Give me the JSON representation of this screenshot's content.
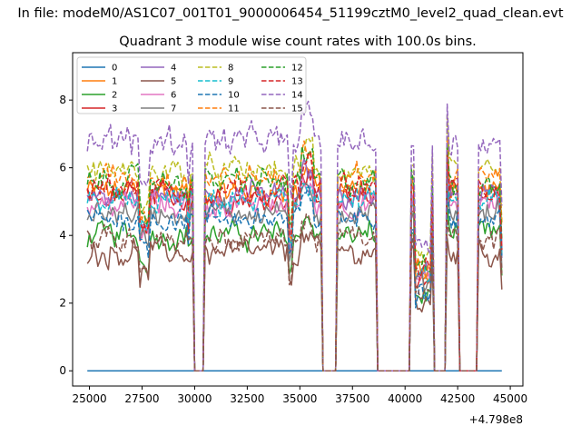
{
  "chart_data": {
    "type": "line",
    "suptitle": "In file: modeM0/AS1C07_001T01_9000006454_51199cztM0_level2_quad_clean.evt",
    "title": "Quadrant 3 module wise count rates with 100.0s bins.",
    "xlabel": "",
    "ylabel": "",
    "x_offset_label": "+4.798e8",
    "xlim": [
      24200,
      45600
    ],
    "ylim": [
      -0.45,
      9.4
    ],
    "x_ticks": [
      25000,
      27500,
      30000,
      32500,
      35000,
      37500,
      40000,
      42500,
      45000
    ],
    "x_tick_labels": [
      "25000",
      "27500",
      "30000",
      "32500",
      "35000",
      "37500",
      "40000",
      "42500",
      "45000"
    ],
    "y_ticks": [
      0,
      2,
      4,
      6,
      8
    ],
    "y_tick_labels": [
      "0",
      "2",
      "4",
      "6",
      "8"
    ],
    "x_range": [
      24900,
      44600
    ],
    "bin_seconds": 100,
    "gaps": [
      [
        30000,
        30400
      ],
      [
        36100,
        36700
      ],
      [
        38700,
        40200
      ],
      [
        41400,
        41900
      ],
      [
        42600,
        43400
      ]
    ],
    "legend": {
      "location": "upper-left",
      "columns": 4
    },
    "series": [
      {
        "name": "0",
        "color": "#1f77b4",
        "dash": false,
        "level": 0.0,
        "amp": 0.0
      },
      {
        "name": "1",
        "color": "#ff7f0e",
        "dash": false,
        "level": 5.3,
        "amp": 0.35
      },
      {
        "name": "2",
        "color": "#2ca02c",
        "dash": false,
        "level": 4.0,
        "amp": 0.35
      },
      {
        "name": "3",
        "color": "#d62728",
        "dash": false,
        "level": 5.1,
        "amp": 0.35
      },
      {
        "name": "4",
        "color": "#9467bd",
        "dash": false,
        "level": 5.2,
        "amp": 0.35
      },
      {
        "name": "5",
        "color": "#8c564b",
        "dash": false,
        "level": 3.5,
        "amp": 0.35
      },
      {
        "name": "6",
        "color": "#e377c2",
        "dash": false,
        "level": 4.9,
        "amp": 0.35
      },
      {
        "name": "7",
        "color": "#7f7f7f",
        "dash": false,
        "level": 4.7,
        "amp": 0.35
      },
      {
        "name": "8",
        "color": "#bcbd22",
        "dash": true,
        "level": 5.9,
        "amp": 0.35
      },
      {
        "name": "9",
        "color": "#17becf",
        "dash": true,
        "level": 5.0,
        "amp": 0.35
      },
      {
        "name": "10",
        "color": "#1f77b4",
        "dash": true,
        "level": 4.5,
        "amp": 0.35
      },
      {
        "name": "11",
        "color": "#ff7f0e",
        "dash": true,
        "level": 5.7,
        "amp": 0.35
      },
      {
        "name": "12",
        "color": "#2ca02c",
        "dash": true,
        "level": 5.6,
        "amp": 0.35
      },
      {
        "name": "13",
        "color": "#d62728",
        "dash": true,
        "level": 5.4,
        "amp": 0.35
      },
      {
        "name": "14",
        "color": "#9467bd",
        "dash": true,
        "level": 6.8,
        "amp": 0.4
      },
      {
        "name": "15",
        "color": "#8c564b",
        "dash": true,
        "level": 3.9,
        "amp": 0.35
      }
    ]
  }
}
